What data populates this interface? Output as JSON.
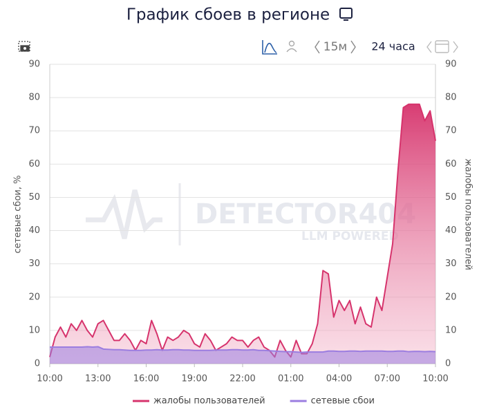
{
  "title": "График сбоев в регионе",
  "toolbar": {
    "interval": "15м",
    "period": "24 часа"
  },
  "watermark": {
    "brand": "DETECTOR404",
    "tagline": "LLM POWERED"
  },
  "chart_data": {
    "type": "area",
    "categories": [
      "10:00",
      null,
      null,
      null,
      null,
      null,
      null,
      null,
      null,
      "13:00",
      null,
      null,
      null,
      null,
      null,
      null,
      null,
      null,
      "16:00",
      null,
      null,
      null,
      null,
      null,
      null,
      null,
      null,
      "19:00",
      null,
      null,
      null,
      null,
      null,
      null,
      null,
      null,
      "22:00",
      null,
      null,
      null,
      null,
      null,
      null,
      null,
      null,
      "01:00",
      null,
      null,
      null,
      null,
      null,
      null,
      null,
      null,
      "04:00",
      null,
      null,
      null,
      null,
      null,
      null,
      null,
      null,
      "07:00",
      null,
      null,
      null,
      null,
      null,
      null,
      null,
      null,
      "10:00"
    ],
    "ylabel": "сетевые сбои, %",
    "y2label": "жалобы пользователей",
    "ylim": [
      0,
      90
    ],
    "yticks": [
      0,
      10,
      20,
      30,
      40,
      50,
      60,
      70,
      80,
      90
    ],
    "y2lim": [
      0,
      90
    ],
    "y2ticks": [
      0,
      10,
      20,
      30,
      40,
      50,
      60,
      70,
      80,
      90
    ],
    "grid": true,
    "series": [
      {
        "name": "жалобы пользователей",
        "color": "#d6336c",
        "axis": "y2",
        "values": [
          2,
          8,
          11,
          8,
          12,
          10,
          13,
          10,
          8,
          12,
          13,
          10,
          7,
          7,
          9,
          7,
          4,
          7,
          6,
          13,
          9,
          4,
          8,
          7,
          8,
          10,
          9,
          6,
          5,
          9,
          7,
          4,
          5,
          6,
          8,
          7,
          7,
          5,
          7,
          8,
          5,
          4,
          2,
          7,
          4,
          2,
          7,
          3,
          3,
          6,
          12,
          28,
          27,
          14,
          19,
          16,
          19,
          12,
          17,
          12,
          11,
          20,
          16,
          26,
          36,
          58,
          77,
          78,
          78,
          78,
          73,
          76,
          67
        ]
      },
      {
        "name": "сетевые сбои",
        "color": "#9b7de0",
        "axis": "y",
        "values": [
          5,
          5,
          5,
          5,
          5,
          5,
          5,
          5.1,
          5,
          5.1,
          4.4,
          4.3,
          4.2,
          4.2,
          4.1,
          4,
          4,
          4,
          4.1,
          4.1,
          4.2,
          4.1,
          4.1,
          4.2,
          4.2,
          4.1,
          4.1,
          4,
          4,
          4,
          4,
          4.1,
          4.1,
          4.1,
          4.2,
          4.2,
          4.1,
          4.1,
          4.2,
          4,
          4,
          3.9,
          3.8,
          3.7,
          3.6,
          3.6,
          3.5,
          3.4,
          3.5,
          3.5,
          3.5,
          3.5,
          3.8,
          3.8,
          3.7,
          3.7,
          3.8,
          3.8,
          3.7,
          3.8,
          3.8,
          3.8,
          3.8,
          3.7,
          3.7,
          3.8,
          3.8,
          3.6,
          3.7,
          3.7,
          3.6,
          3.7,
          3.6
        ]
      }
    ]
  }
}
